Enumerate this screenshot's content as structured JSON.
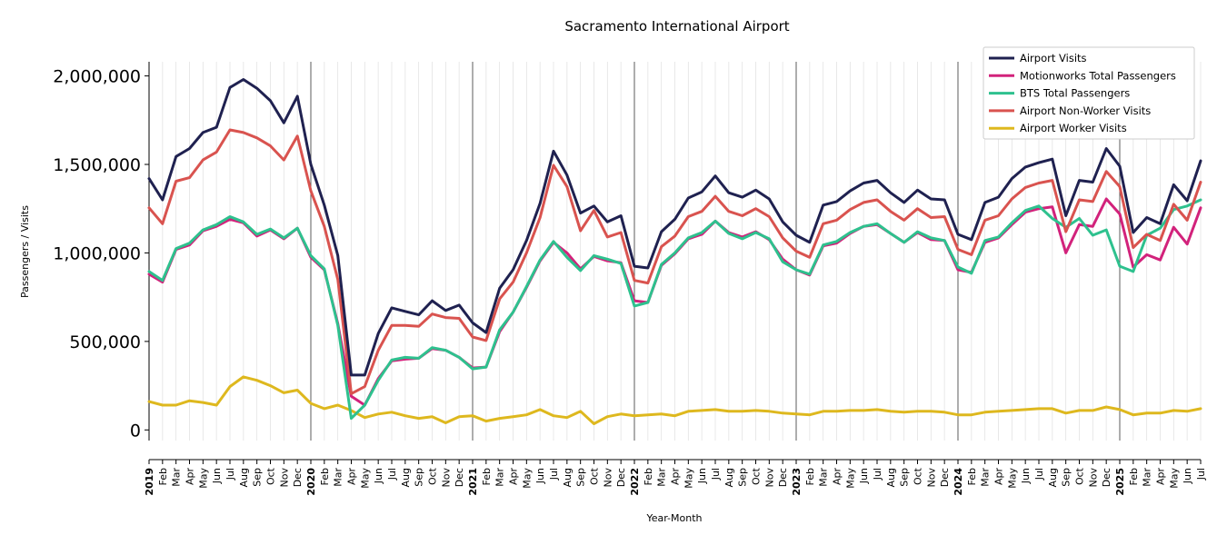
{
  "chart_data": {
    "type": "line",
    "title": "Sacramento International Airport",
    "xlabel": "Year-Month",
    "ylabel": "Passengers / Visits",
    "ylim": [
      -60000,
      2080000
    ],
    "yticks": [
      0,
      500000,
      1000000,
      1500000,
      2000000
    ],
    "ytick_labels": [
      "0",
      "500,000",
      "1,000,000",
      "1,500,000",
      "2,000,000"
    ],
    "grid": "vertical monthly gridlines, black line at each January",
    "legend_position": "top-right",
    "year_labels": [
      "2019",
      "2020",
      "2021",
      "2022",
      "2023",
      "2024",
      "2025"
    ],
    "month_labels": [
      "Feb",
      "Mar",
      "Apr",
      "May",
      "Jun",
      "Jul",
      "Aug",
      "Sep",
      "Oct",
      "Nov",
      "Dec"
    ],
    "x_start": "2019-01",
    "series": [
      {
        "name": "Airport Visits",
        "color": "#1f2150",
        "values": [
          1420000,
          1300000,
          1545000,
          1590000,
          1680000,
          1710000,
          1935000,
          1980000,
          1930000,
          1860000,
          1735000,
          1885000,
          1500000,
          1270000,
          985000,
          310000,
          310000,
          545000,
          690000,
          670000,
          650000,
          730000,
          675000,
          705000,
          605000,
          550000,
          800000,
          905000,
          1070000,
          1280000,
          1575000,
          1440000,
          1225000,
          1265000,
          1175000,
          1210000,
          925000,
          915000,
          1120000,
          1190000,
          1310000,
          1345000,
          1435000,
          1340000,
          1315000,
          1355000,
          1305000,
          1175000,
          1100000,
          1060000,
          1270000,
          1290000,
          1350000,
          1395000,
          1410000,
          1340000,
          1285000,
          1355000,
          1305000,
          1300000,
          1105000,
          1075000,
          1285000,
          1315000,
          1420000,
          1485000,
          1510000,
          1530000,
          1210000,
          1410000,
          1400000,
          1590000,
          1490000,
          1115000,
          1200000,
          1165000,
          1385000,
          1295000,
          1520000
        ]
      },
      {
        "name": "Motionworks Total Passengers",
        "color": "#d2227b",
        "values": [
          880000,
          835000,
          1020000,
          1045000,
          1125000,
          1150000,
          1190000,
          1170000,
          1095000,
          1130000,
          1080000,
          1140000,
          975000,
          905000,
          600000,
          190000,
          140000,
          290000,
          390000,
          400000,
          405000,
          460000,
          450000,
          410000,
          350000,
          355000,
          555000,
          665000,
          805000,
          955000,
          1060000,
          1000000,
          910000,
          980000,
          955000,
          945000,
          730000,
          720000,
          930000,
          995000,
          1080000,
          1105000,
          1180000,
          1115000,
          1090000,
          1120000,
          1075000,
          965000,
          905000,
          875000,
          1040000,
          1055000,
          1110000,
          1150000,
          1160000,
          1110000,
          1060000,
          1115000,
          1075000,
          1070000,
          905000,
          890000,
          1060000,
          1085000,
          1160000,
          1230000,
          1250000,
          1260000,
          1000000,
          1160000,
          1150000,
          1305000,
          1220000,
          920000,
          990000,
          960000,
          1145000,
          1050000,
          1255000
        ]
      },
      {
        "name": "BTS Total Passengers",
        "color": "#2ec18e",
        "values": [
          895000,
          845000,
          1025000,
          1055000,
          1130000,
          1160000,
          1205000,
          1175000,
          1105000,
          1135000,
          1085000,
          1140000,
          985000,
          910000,
          590000,
          65000,
          140000,
          280000,
          395000,
          410000,
          405000,
          465000,
          450000,
          410000,
          345000,
          355000,
          565000,
          665000,
          810000,
          960000,
          1065000,
          975000,
          900000,
          985000,
          965000,
          940000,
          700000,
          720000,
          935000,
          1000000,
          1085000,
          1115000,
          1180000,
          1110000,
          1080000,
          1115000,
          1080000,
          950000,
          905000,
          880000,
          1045000,
          1065000,
          1115000,
          1150000,
          1165000,
          1110000,
          1060000,
          1120000,
          1085000,
          1070000,
          920000,
          885000,
          1070000,
          1090000,
          1170000,
          1240000,
          1265000,
          1195000,
          1145000,
          1195000,
          1100000,
          1130000,
          925000,
          895000,
          1100000,
          1140000,
          1245000,
          1265000,
          1300000
        ]
      },
      {
        "name": "Airport Non-Worker Visits",
        "color": "#d9534f",
        "values": [
          1255000,
          1165000,
          1405000,
          1425000,
          1525000,
          1570000,
          1695000,
          1680000,
          1650000,
          1605000,
          1525000,
          1660000,
          1350000,
          1150000,
          850000,
          205000,
          245000,
          450000,
          590000,
          590000,
          585000,
          655000,
          635000,
          630000,
          525000,
          505000,
          740000,
          835000,
          1000000,
          1200000,
          1495000,
          1375000,
          1125000,
          1240000,
          1090000,
          1115000,
          845000,
          830000,
          1035000,
          1095000,
          1205000,
          1235000,
          1320000,
          1235000,
          1210000,
          1250000,
          1205000,
          1085000,
          1010000,
          975000,
          1165000,
          1185000,
          1245000,
          1285000,
          1300000,
          1235000,
          1185000,
          1250000,
          1200000,
          1205000,
          1020000,
          990000,
          1185000,
          1210000,
          1305000,
          1370000,
          1395000,
          1410000,
          1120000,
          1300000,
          1290000,
          1460000,
          1375000,
          1030000,
          1105000,
          1070000,
          1275000,
          1185000,
          1400000
        ]
      },
      {
        "name": "Airport Worker Visits",
        "color": "#deb81e",
        "values": [
          160000,
          140000,
          140000,
          165000,
          155000,
          140000,
          245000,
          300000,
          280000,
          250000,
          210000,
          225000,
          150000,
          120000,
          140000,
          110000,
          70000,
          90000,
          100000,
          80000,
          65000,
          75000,
          40000,
          75000,
          80000,
          50000,
          65000,
          75000,
          85000,
          115000,
          80000,
          70000,
          105000,
          35000,
          75000,
          90000,
          80000,
          85000,
          90000,
          80000,
          105000,
          110000,
          115000,
          105000,
          105000,
          110000,
          105000,
          95000,
          90000,
          85000,
          105000,
          105000,
          110000,
          110000,
          115000,
          105000,
          100000,
          105000,
          105000,
          100000,
          85000,
          85000,
          100000,
          105000,
          110000,
          115000,
          120000,
          120000,
          95000,
          110000,
          110000,
          130000,
          115000,
          85000,
          95000,
          95000,
          110000,
          105000,
          120000
        ]
      }
    ]
  }
}
